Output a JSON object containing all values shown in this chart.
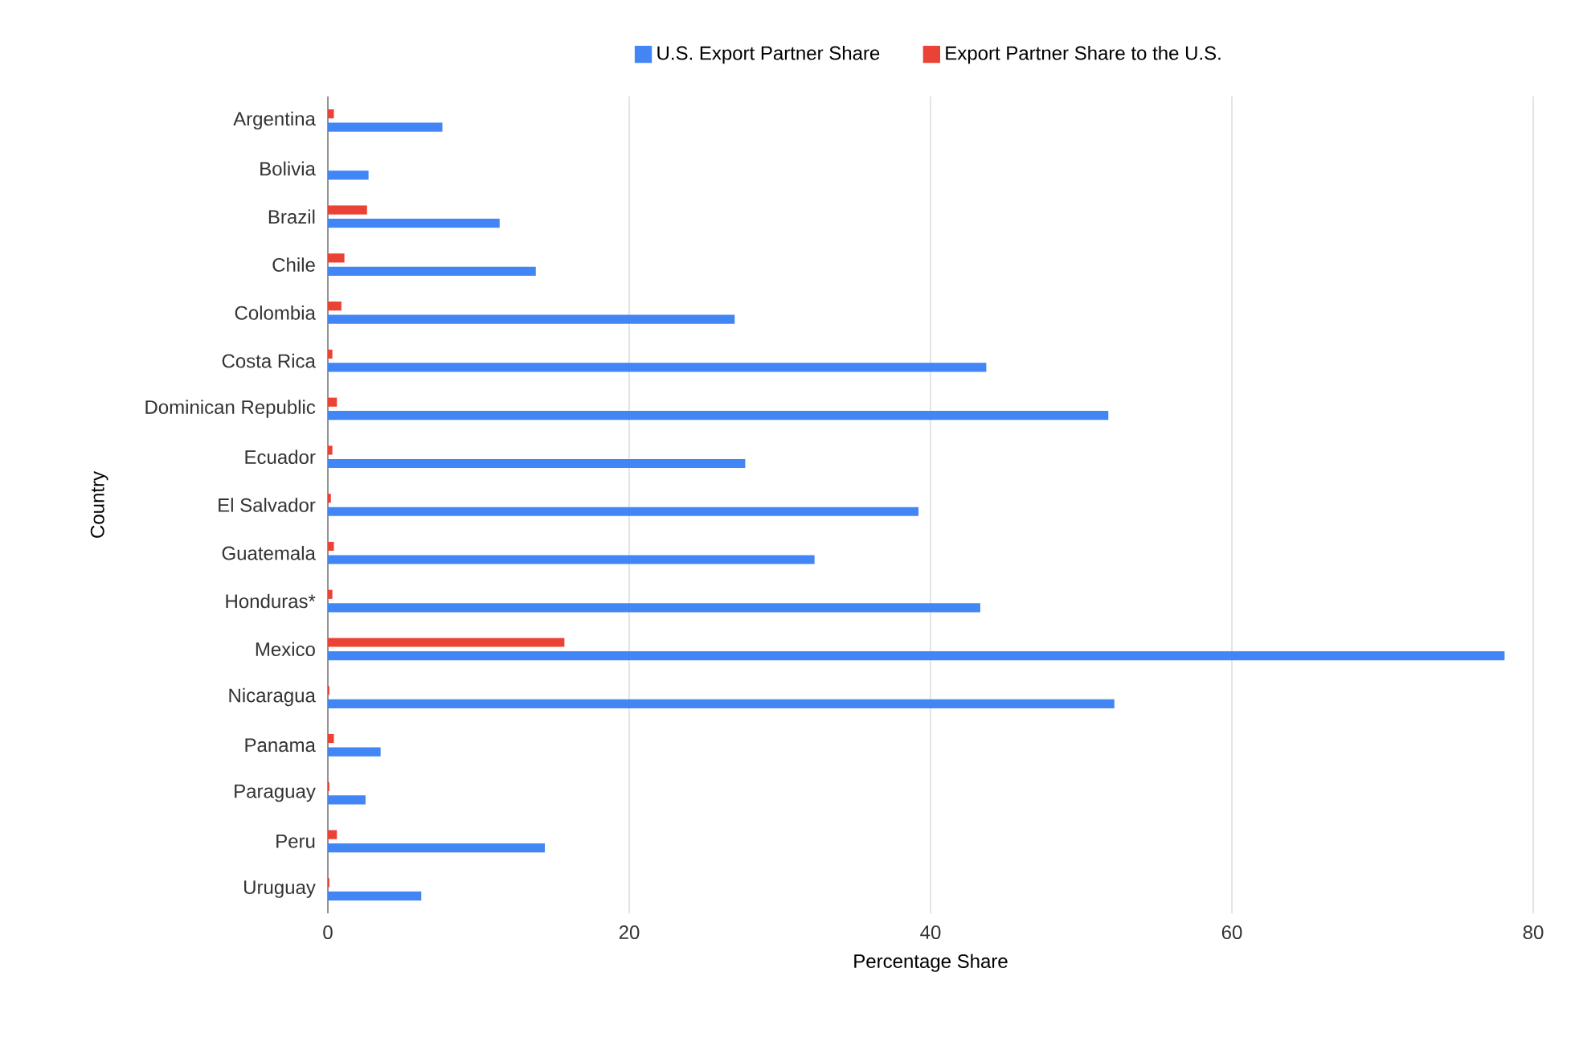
{
  "chart_data": {
    "type": "bar",
    "orientation": "horizontal",
    "xlabel": "Percentage Share",
    "ylabel": "Country",
    "categories": [
      "Argentina",
      "Bolivia",
      "Brazil",
      "Chile",
      "Colombia",
      "Costa Rica",
      "Dominican Republic",
      "Ecuador",
      "El Salvador",
      "Guatemala",
      "Honduras*",
      "Mexico",
      "Nicaragua",
      "Panama",
      "Paraguay",
      "Peru",
      "Uruguay"
    ],
    "series": [
      {
        "name": "U.S. Export Partner Share",
        "color": "#4285f4",
        "values": [
          7.6,
          2.7,
          11.4,
          13.8,
          27.0,
          43.7,
          51.8,
          27.7,
          39.2,
          32.3,
          43.3,
          78.1,
          52.2,
          3.5,
          2.5,
          14.4,
          6.2
        ]
      },
      {
        "name": "Export Partner Share to the U.S.",
        "color": "#ea4335",
        "values": [
          0.4,
          0,
          2.6,
          1.1,
          0.9,
          0.3,
          0.6,
          0.3,
          0.2,
          0.4,
          0.3,
          15.7,
          0.1,
          0.4,
          0.1,
          0.6,
          0.1
        ]
      }
    ],
    "xlim": [
      0,
      80
    ],
    "xticks": [
      0,
      20,
      40,
      60,
      80
    ],
    "grid": "x",
    "legend": "top"
  }
}
